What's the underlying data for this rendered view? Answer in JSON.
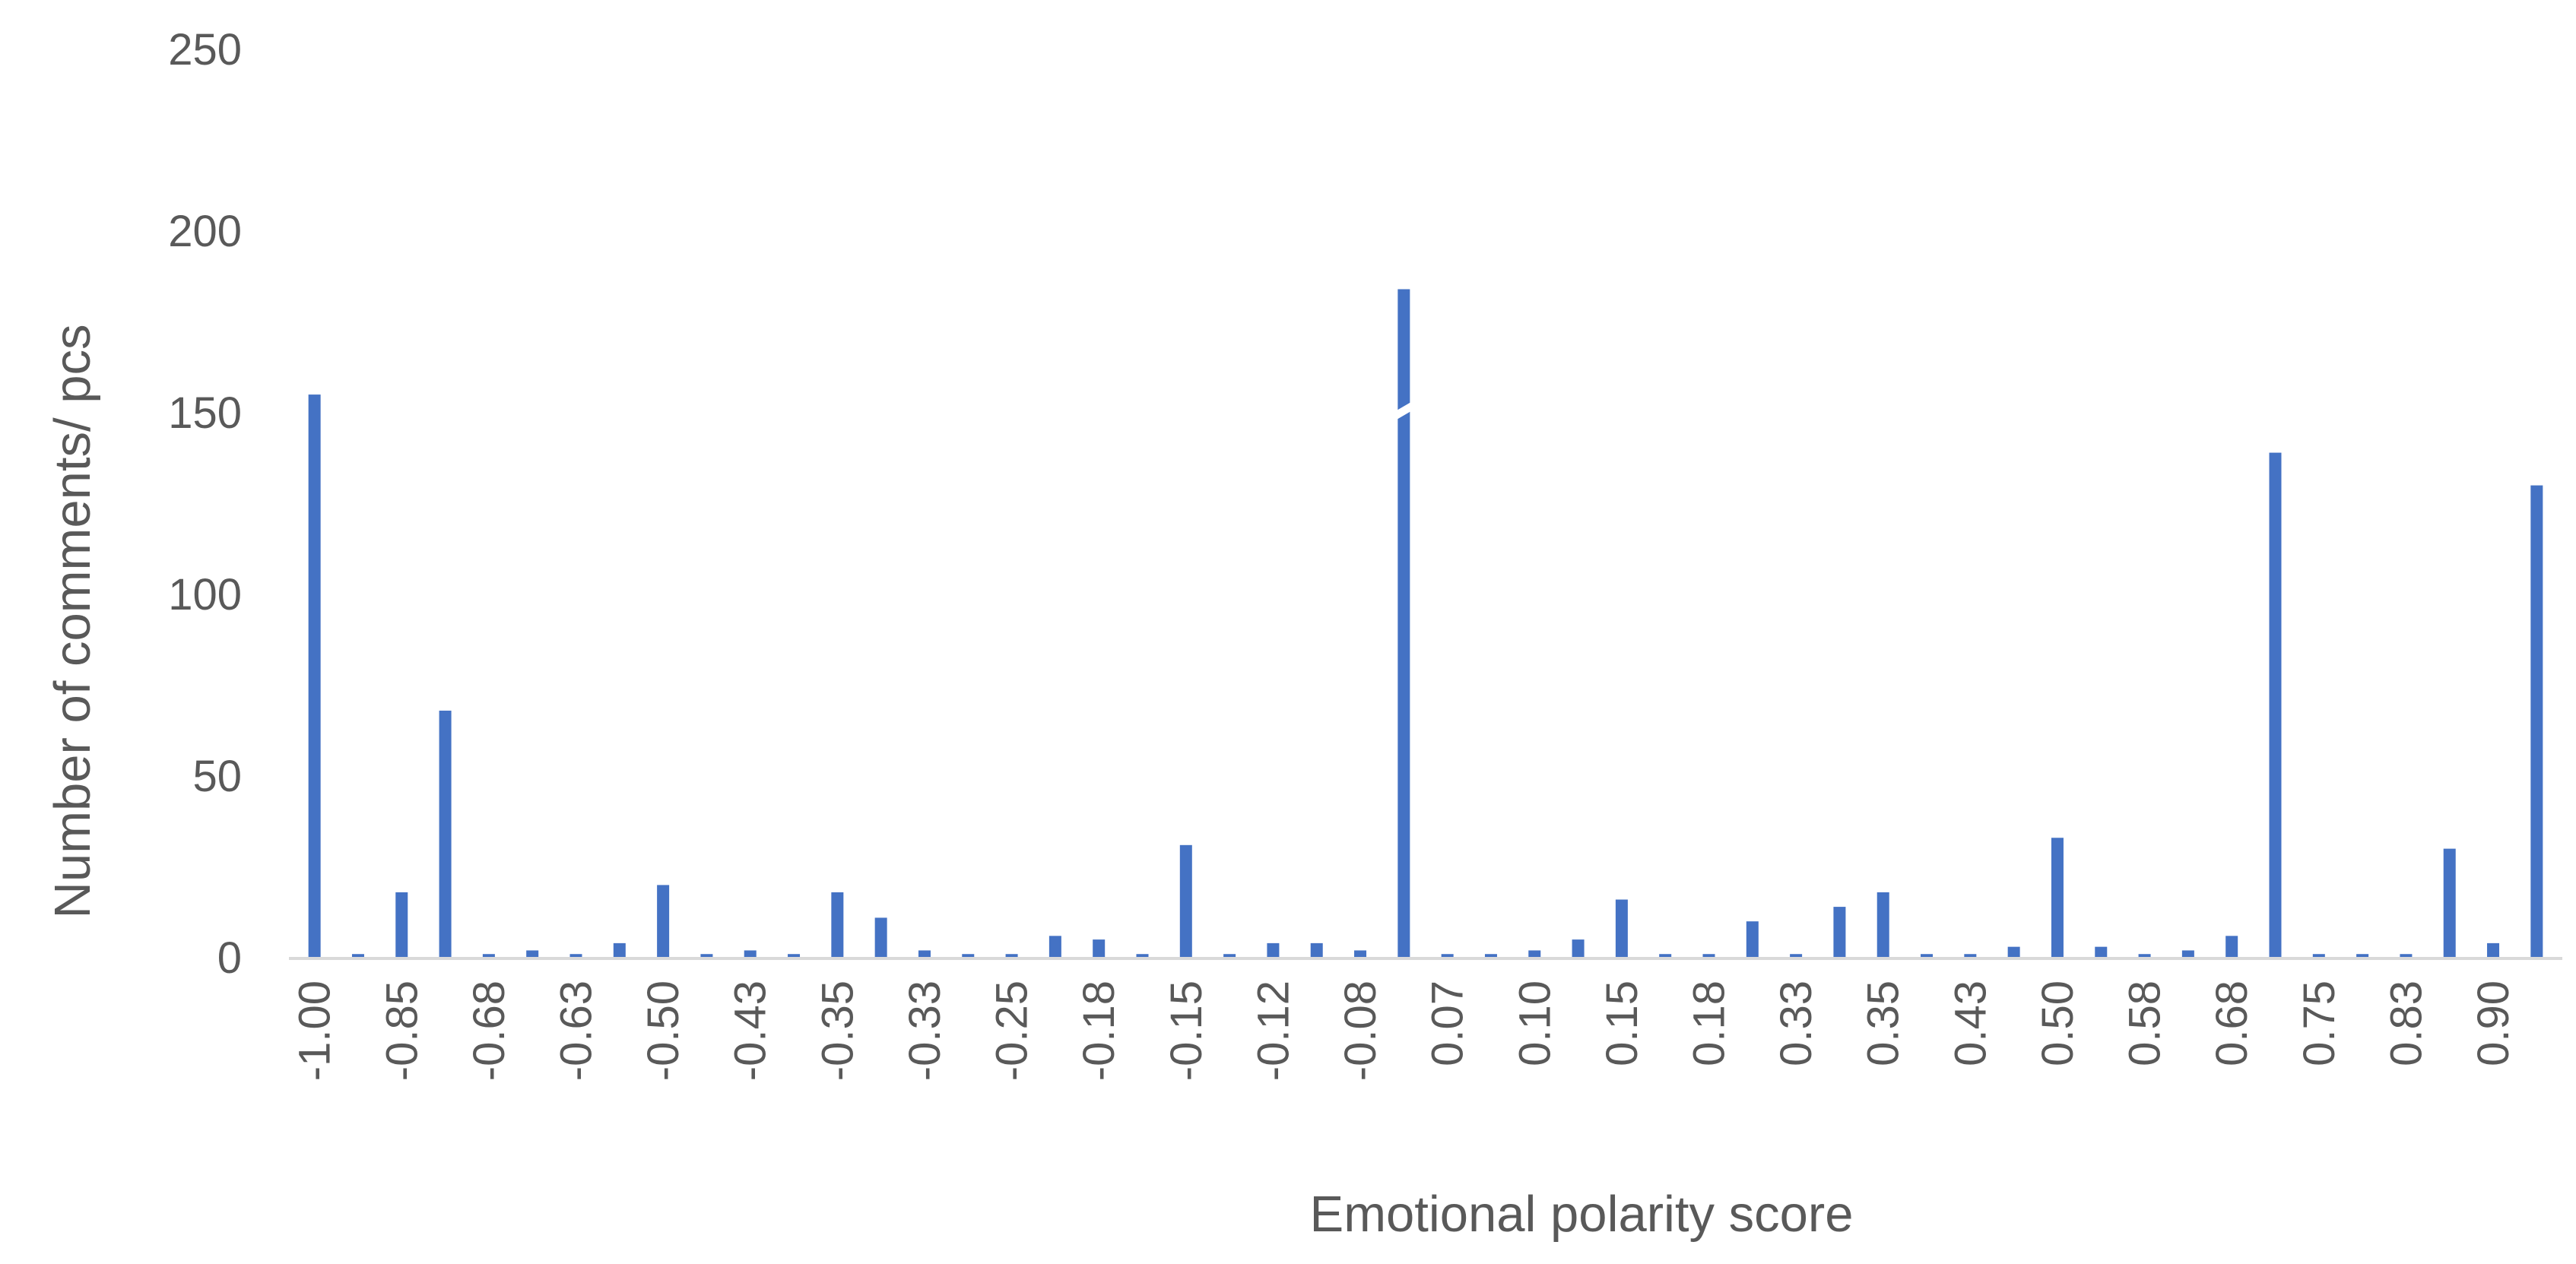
{
  "chart_data": {
    "type": "bar",
    "title": "",
    "xlabel": "Emotional polarity score",
    "ylabel": "Number of comments/ pcs",
    "ylim": [
      0,
      250
    ],
    "yticks": [
      0,
      50,
      100,
      150,
      200,
      250
    ],
    "grid": false,
    "legend": "none",
    "bar_color": "#4472C4",
    "axis_color": "#D9D9D9",
    "text_color": "#595959",
    "axis_break": "on the tallest bar (true value exceeds the visible 184)",
    "categories": [
      "-1.00",
      "",
      "-0.85",
      "",
      "-0.68",
      "",
      "-0.63",
      "",
      "-0.50",
      "",
      "-0.43",
      "",
      "-0.35",
      "",
      "-0.33",
      "",
      "-0.25",
      "",
      "-0.18",
      "",
      "-0.15",
      "",
      "-0.12",
      "",
      "-0.08",
      "",
      "0.07",
      "",
      "0.10",
      "",
      "0.15",
      "",
      "0.18",
      "",
      "0.33",
      "",
      "0.35",
      "",
      "0.43",
      "",
      "0.50",
      "",
      "0.58",
      "",
      "0.68",
      "",
      "0.75",
      "",
      "0.83",
      "",
      "0.90",
      ""
    ],
    "values": [
      155,
      1,
      18,
      68,
      1,
      2,
      1,
      4,
      20,
      1,
      2,
      1,
      18,
      11,
      2,
      1,
      1,
      6,
      5,
      1,
      31,
      1,
      4,
      4,
      2,
      184,
      1,
      1,
      2,
      5,
      16,
      1,
      1,
      10,
      1,
      14,
      18,
      1,
      1,
      3,
      33,
      3,
      1,
      2,
      6,
      139,
      1,
      1,
      1,
      30,
      4,
      130
    ]
  }
}
